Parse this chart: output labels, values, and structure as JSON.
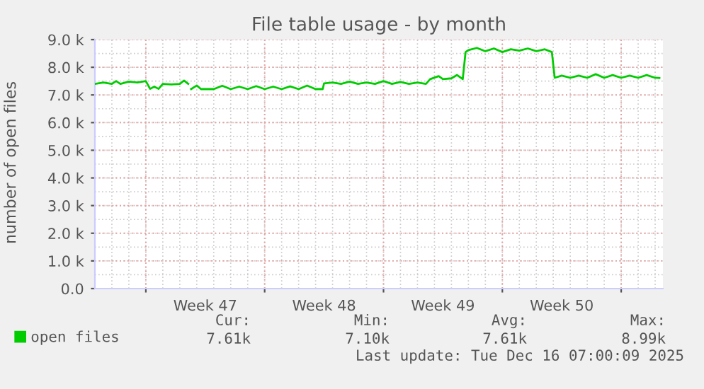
{
  "chart_data": {
    "type": "line",
    "title": "File table usage - by month",
    "ylabel": "number of open files",
    "x": [
      "2025-11-14T00:00",
      "2025-11-14T12:00",
      "2025-11-15T00:00",
      "2025-11-15T06:00",
      "2025-11-15T12:00",
      "2025-11-16T00:00",
      "2025-11-16T12:00",
      "2025-11-17T00:00",
      "2025-11-17T06:00",
      "2025-11-17T12:00",
      "2025-11-17T18:00",
      "2025-11-18T00:00",
      "2025-11-18T12:00",
      "2025-11-19T00:00",
      "2025-11-19T06:00",
      "2025-11-19T12:00",
      "2025-11-19T14:00",
      "2025-11-19T16:00",
      "2025-11-20T00:00",
      "2025-11-20T06:00",
      "2025-11-21T00:00",
      "2025-11-21T12:00",
      "2025-11-22T00:00",
      "2025-11-22T12:00",
      "2025-11-23T00:00",
      "2025-11-23T12:00",
      "2025-11-24T00:00",
      "2025-11-24T12:00",
      "2025-11-25T00:00",
      "2025-11-25T12:00",
      "2025-11-26T00:00",
      "2025-11-26T12:00",
      "2025-11-27T00:00",
      "2025-11-27T10:00",
      "2025-11-27T12:00",
      "2025-11-28T00:00",
      "2025-11-28T12:00",
      "2025-11-29T00:00",
      "2025-11-29T12:00",
      "2025-11-30T00:00",
      "2025-11-30T12:00",
      "2025-12-01T00:00",
      "2025-12-01T12:00",
      "2025-12-02T00:00",
      "2025-12-02T12:00",
      "2025-12-03T00:00",
      "2025-12-03T12:00",
      "2025-12-03T18:00",
      "2025-12-04T06:00",
      "2025-12-04T12:00",
      "2025-12-05T00:00",
      "2025-12-05T08:00",
      "2025-12-05T16:00",
      "2025-12-05T20:00",
      "2025-12-06T00:00",
      "2025-12-06T12:00",
      "2025-12-07T00:00",
      "2025-12-07T12:00",
      "2025-12-08T00:00",
      "2025-12-08T12:00",
      "2025-12-09T00:00",
      "2025-12-09T12:00",
      "2025-12-10T00:00",
      "2025-12-10T12:00",
      "2025-12-10T22:00",
      "2025-12-11T02:00",
      "2025-12-11T12:00",
      "2025-12-12T00:00",
      "2025-12-12T12:00",
      "2025-12-13T00:00",
      "2025-12-13T12:00",
      "2025-12-14T00:00",
      "2025-12-14T12:00",
      "2025-12-15T00:00",
      "2025-12-15T12:00",
      "2025-12-16T00:00",
      "2025-12-16T12:00",
      "2025-12-17T00:00",
      "2025-12-17T06:00"
    ],
    "series": [
      {
        "name": "open files",
        "color": "#00cc00",
        "values": [
          7400,
          7450,
          7400,
          7500,
          7400,
          7480,
          7450,
          7500,
          7220,
          7300,
          7220,
          7400,
          7380,
          7400,
          7520,
          7400,
          null,
          7210,
          7340,
          7210,
          7210,
          7330,
          7210,
          7300,
          7210,
          7320,
          7210,
          7300,
          7210,
          7310,
          7210,
          7340,
          7210,
          7210,
          7420,
          7450,
          7400,
          7480,
          7400,
          7450,
          7400,
          7500,
          7400,
          7470,
          7400,
          7450,
          7400,
          7570,
          7680,
          7570,
          7600,
          7720,
          7570,
          8550,
          8620,
          8700,
          8580,
          8680,
          8550,
          8650,
          8600,
          8680,
          8580,
          8650,
          8550,
          7620,
          7700,
          7620,
          7700,
          7620,
          7750,
          7620,
          7720,
          7620,
          7700,
          7620,
          7720,
          7620,
          7610
        ]
      }
    ],
    "xlim": [
      "2025-11-14T00:00",
      "2025-12-17T11:00"
    ],
    "xticks": [
      {
        "value": "2025-11-17T00:00",
        "label": null
      },
      {
        "value": "2025-11-24T00:00",
        "label": null
      },
      {
        "value": "2025-12-01T00:00",
        "label": null
      },
      {
        "value": "2025-12-08T00:00",
        "label": null
      },
      {
        "value": "2025-12-15T00:00",
        "label": null
      },
      {
        "value": "2025-11-20T12:00",
        "label": "Week 47"
      },
      {
        "value": "2025-11-27T12:00",
        "label": "Week 48"
      },
      {
        "value": "2025-12-04T12:00",
        "label": "Week 49"
      },
      {
        "value": "2025-12-11T12:00",
        "label": "Week 50"
      }
    ],
    "ylim": [
      0,
      9000
    ],
    "yticks": [
      {
        "value": 0,
        "label": "0.0"
      },
      {
        "value": 1000,
        "label": "1.0 k"
      },
      {
        "value": 2000,
        "label": "2.0 k"
      },
      {
        "value": 3000,
        "label": "3.0 k"
      },
      {
        "value": 4000,
        "label": "4.0 k"
      },
      {
        "value": 5000,
        "label": "5.0 k"
      },
      {
        "value": 6000,
        "label": "6.0 k"
      },
      {
        "value": 7000,
        "label": "7.0 k"
      },
      {
        "value": 8000,
        "label": "8.0 k"
      },
      {
        "value": 9000,
        "label": "9.0 k"
      }
    ],
    "grid": true,
    "legend": "bottom left",
    "marker": "none",
    "line_style": "solid",
    "annotations": [
      "Cur:",
      "Min:",
      "Avg:",
      "Max:",
      "7.61k",
      "7.10k",
      "7.61k",
      "8.99k",
      "Last update: Tue Dec 16 07:00:09 2025"
    ]
  }
}
